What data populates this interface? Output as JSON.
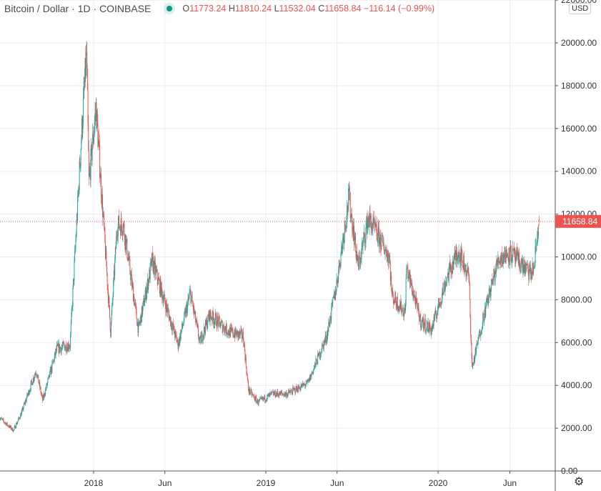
{
  "header": {
    "symbol": "Bitcoin / Dollar · 1D · COINBASE",
    "open_label": "O",
    "open": "11773.24",
    "high_label": "H",
    "high": "11810.24",
    "low_label": "L",
    "low": "11532.04",
    "close_label": "C",
    "close": "11658.84",
    "change": "−116.14 (−0.99%)"
  },
  "currency_button": "USD",
  "colors": {
    "up": "#26a69a",
    "down": "#ef5350",
    "grid": "#e8ecf0",
    "axis": "#555"
  },
  "icons": {
    "settings": "gear-icon",
    "status": "market-status-dot"
  },
  "chart_data": {
    "type": "candlestick",
    "title": "Bitcoin / Dollar · 1D · COINBASE",
    "interval": "1D",
    "ylim": [
      0,
      22000
    ],
    "yticks": [
      "0.00",
      "2000.00",
      "4000.00",
      "6000.00",
      "8000.00",
      "10000.00",
      "12000.00",
      "14000.00",
      "16000.00",
      "18000.00",
      "20000.00",
      "22000.00"
    ],
    "xticks": [
      {
        "label": "2018",
        "date": "2018-01-01"
      },
      {
        "label": "Jun",
        "date": "2018-06-01"
      },
      {
        "label": "2019",
        "date": "2019-01-01"
      },
      {
        "label": "Jun",
        "date": "2019-06-01"
      },
      {
        "label": "2020",
        "date": "2020-01-01"
      },
      {
        "label": "Jun",
        "date": "2020-06-01"
      }
    ],
    "last_price": "11658.84",
    "grid": true,
    "approx_close_path": [
      [
        "2017-06-15",
        2500
      ],
      [
        "2017-07-15",
        1900
      ],
      [
        "2017-08-01",
        2700
      ],
      [
        "2017-09-01",
        4700
      ],
      [
        "2017-09-15",
        3300
      ],
      [
        "2017-10-15",
        5700
      ],
      [
        "2017-11-12",
        5900
      ],
      [
        "2017-12-07",
        16000
      ],
      [
        "2017-12-17",
        19500
      ],
      [
        "2017-12-22",
        13500
      ],
      [
        "2018-01-06",
        17000
      ],
      [
        "2018-02-06",
        6500
      ],
      [
        "2018-02-20",
        11500
      ],
      [
        "2018-03-05",
        11500
      ],
      [
        "2018-04-06",
        6600
      ],
      [
        "2018-05-05",
        9800
      ],
      [
        "2018-06-29",
        5900
      ],
      [
        "2018-07-25",
        8300
      ],
      [
        "2018-08-14",
        6000
      ],
      [
        "2018-09-04",
        7300
      ],
      [
        "2018-10-15",
        6500
      ],
      [
        "2018-11-14",
        6300
      ],
      [
        "2018-11-25",
        3800
      ],
      [
        "2018-12-15",
        3200
      ],
      [
        "2019-01-15",
        3600
      ],
      [
        "2019-02-15",
        3600
      ],
      [
        "2019-03-31",
        4100
      ],
      [
        "2019-05-10",
        6300
      ],
      [
        "2019-05-30",
        8600
      ],
      [
        "2019-06-26",
        12800
      ],
      [
        "2019-07-16",
        9500
      ],
      [
        "2019-08-06",
        11800
      ],
      [
        "2019-09-20",
        10000
      ],
      [
        "2019-09-25",
        8200
      ],
      [
        "2019-10-23",
        7400
      ],
      [
        "2019-10-26",
        9500
      ],
      [
        "2019-11-25",
        7000
      ],
      [
        "2019-12-18",
        6600
      ],
      [
        "2020-01-19",
        9000
      ],
      [
        "2020-02-13",
        10300
      ],
      [
        "2020-03-06",
        9100
      ],
      [
        "2020-03-13",
        4800
      ],
      [
        "2020-04-06",
        7200
      ],
      [
        "2020-05-08",
        9900
      ],
      [
        "2020-06-01",
        10200
      ],
      [
        "2020-07-15",
        9200
      ],
      [
        "2020-07-22",
        9500
      ],
      [
        "2020-07-31",
        11300
      ],
      [
        "2020-08-02",
        11658.84
      ]
    ]
  }
}
